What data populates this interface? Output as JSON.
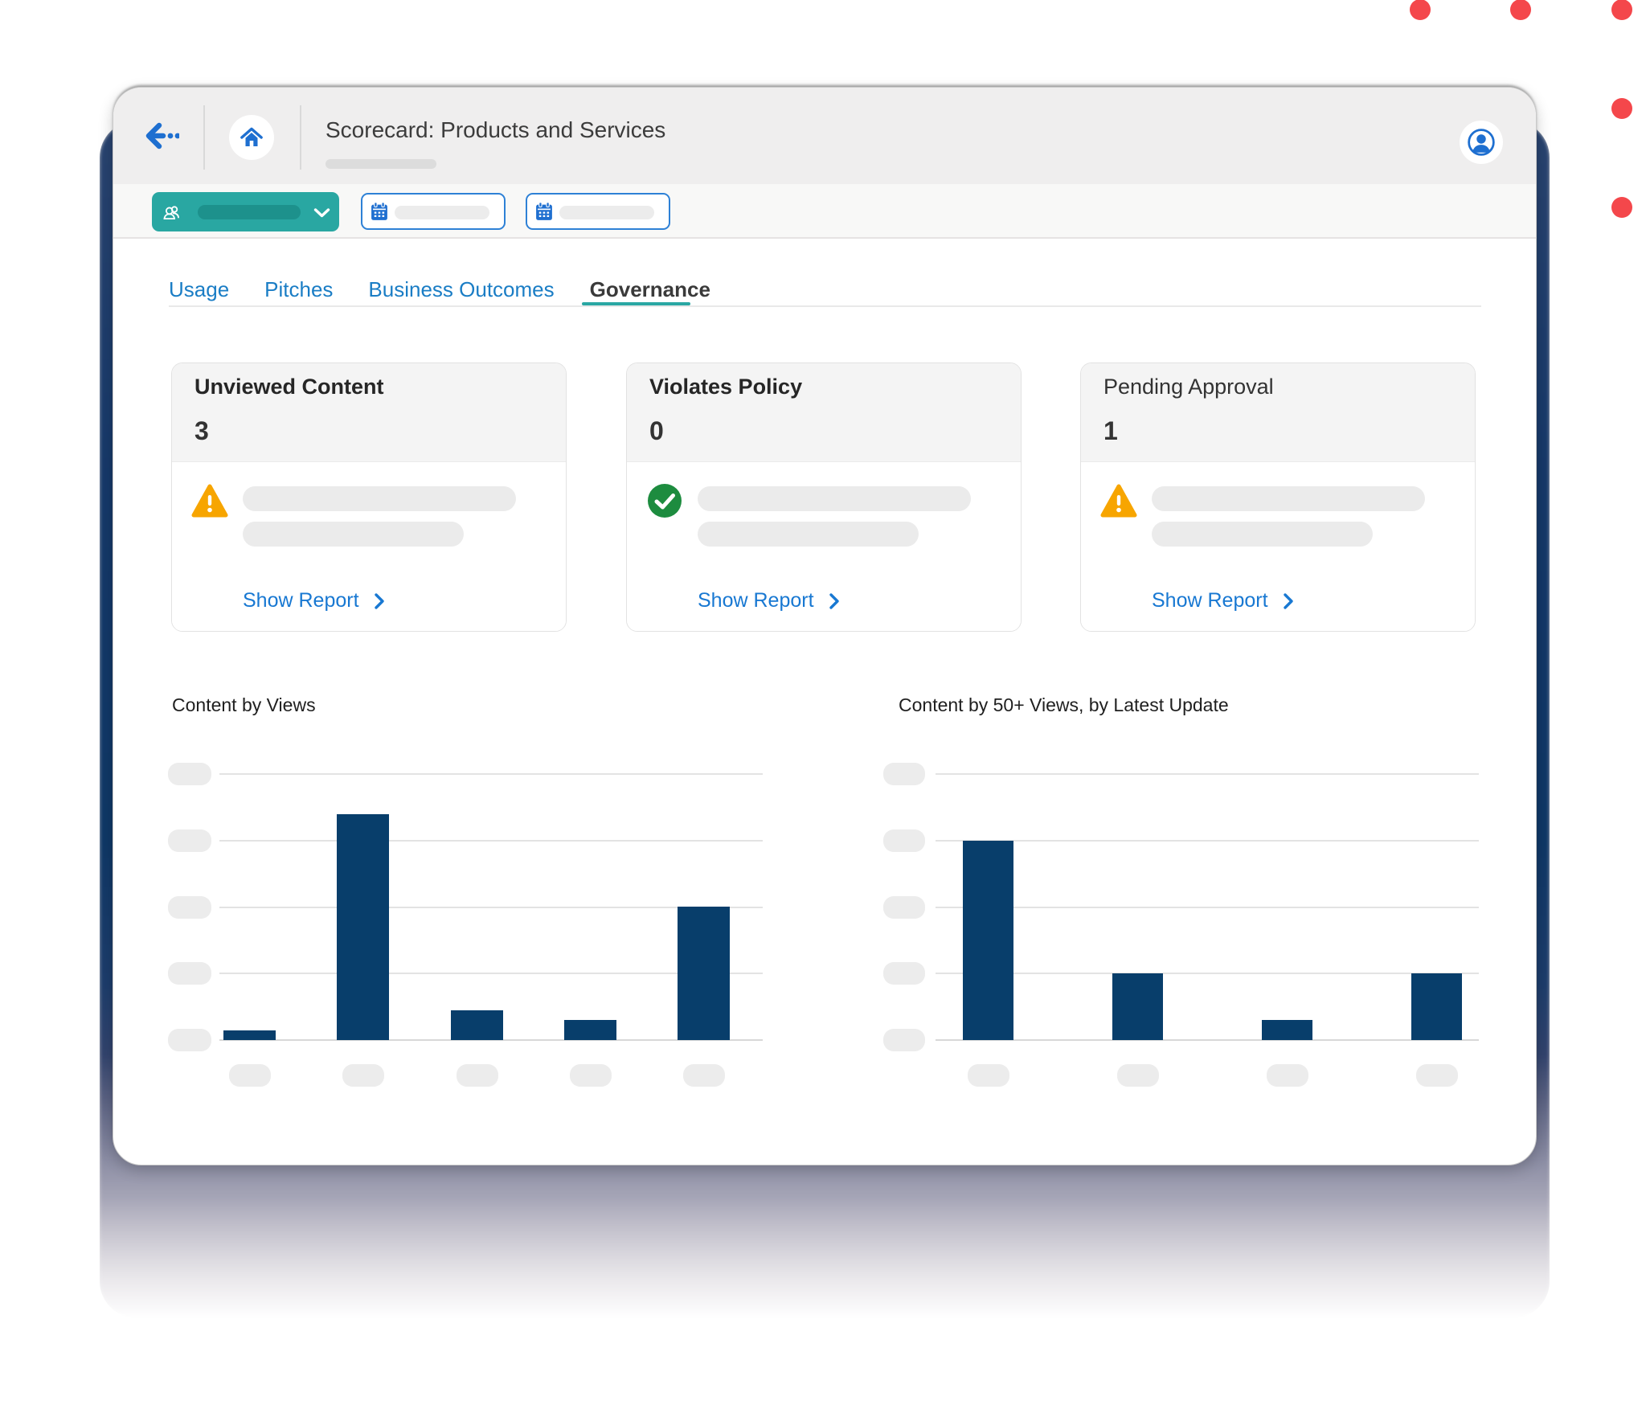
{
  "header": {
    "title": "Scorecard: Products and Services"
  },
  "tabs": [
    {
      "label": "Usage",
      "active": false
    },
    {
      "label": "Pitches",
      "active": false
    },
    {
      "label": "Business Outcomes",
      "active": false
    },
    {
      "label": "Governance",
      "active": true
    }
  ],
  "cards": [
    {
      "title": "Unviewed Content",
      "value": "3",
      "status_icon": "warning-triangle",
      "link_label": "Show Report"
    },
    {
      "title": "Violates Policy",
      "value": "0",
      "status_icon": "check-circle",
      "link_label": "Show Report"
    },
    {
      "title": "Pending Approval",
      "value": "1",
      "status_icon": "warning-triangle",
      "link_label": "Show Report"
    }
  ],
  "chart_data": [
    {
      "type": "bar",
      "title": "Content by Views",
      "values": [
        0.15,
        3.4,
        0.45,
        0.3,
        2.0
      ],
      "categories": [
        "",
        "",
        "",
        "",
        ""
      ],
      "ylim": [
        0,
        4
      ],
      "xlabel": "",
      "ylabel": "",
      "grid": true,
      "axis_labels_hidden": true,
      "bar_color": "#083e6b"
    },
    {
      "type": "bar",
      "title": "Content by 50+ Views, by Latest Update",
      "values": [
        3.0,
        1.0,
        0.3,
        1.0
      ],
      "categories": [
        "",
        "",
        "",
        ""
      ],
      "ylim": [
        0,
        4
      ],
      "xlabel": "",
      "ylabel": "",
      "grid": true,
      "axis_labels_hidden": true,
      "bar_color": "#083e6b"
    }
  ],
  "icons": {
    "back": "arrow-left-with-dots",
    "home": "house",
    "avatar": "person-in-circle",
    "filter_select": "people-group",
    "date_picker": "calendar",
    "select_caret": "chevron-down",
    "warning": "warning-triangle",
    "success": "check-circle",
    "link_caret": "chevron-right"
  },
  "colors": {
    "accent_teal": "#29a7a2",
    "link_blue": "#1878d2",
    "tab_blue": "#1a7dc5",
    "bar_navy": "#083e6b",
    "warning_orange": "#f7a500",
    "success_green": "#1d8c3f",
    "dot_red": "#f4474b"
  }
}
